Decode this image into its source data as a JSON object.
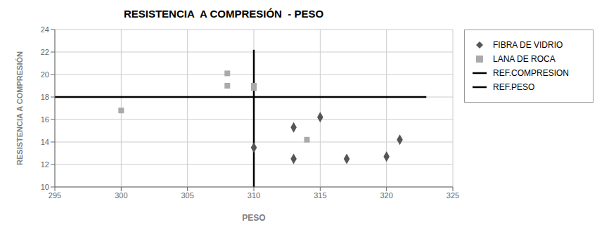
{
  "chart_data": {
    "type": "scatter",
    "title": "RESISTENCIA  A COMPRESIÓN  - PESO",
    "xlabel": "PESO",
    "ylabel": "RESISTENCIA A COMPRESIÓN",
    "xlim": [
      295,
      325
    ],
    "ylim": [
      10,
      24
    ],
    "xticks": [
      295,
      300,
      305,
      310,
      315,
      320,
      325
    ],
    "yticks": [
      10,
      12,
      14,
      16,
      18,
      20,
      22,
      24
    ],
    "grid": true,
    "legend": "right",
    "series": [
      {
        "name": "FIBRA DE VIDRIO",
        "type": "scatter",
        "color": "#555555",
        "marker": "diamond",
        "x": [
          310,
          313,
          313,
          315,
          317,
          320,
          321
        ],
        "values": [
          13.5,
          15.3,
          12.5,
          16.2,
          12.5,
          12.7,
          14.2
        ]
      },
      {
        "name": "LANA DE ROCA",
        "type": "scatter",
        "color": "#aaaaaa",
        "marker": "square",
        "x": [
          300,
          308,
          308,
          310,
          310,
          314
        ],
        "values": [
          16.8,
          20.1,
          19.0,
          19.0,
          18.8,
          14.2
        ]
      },
      {
        "name": "REF.COMPRESION",
        "type": "line",
        "color": "#000000",
        "x": [
          295,
          323
        ],
        "values": [
          18,
          18
        ]
      },
      {
        "name": "REF.PESO",
        "type": "line",
        "color": "#000000",
        "x": [
          310,
          310
        ],
        "values": [
          10,
          22.2
        ]
      }
    ]
  }
}
